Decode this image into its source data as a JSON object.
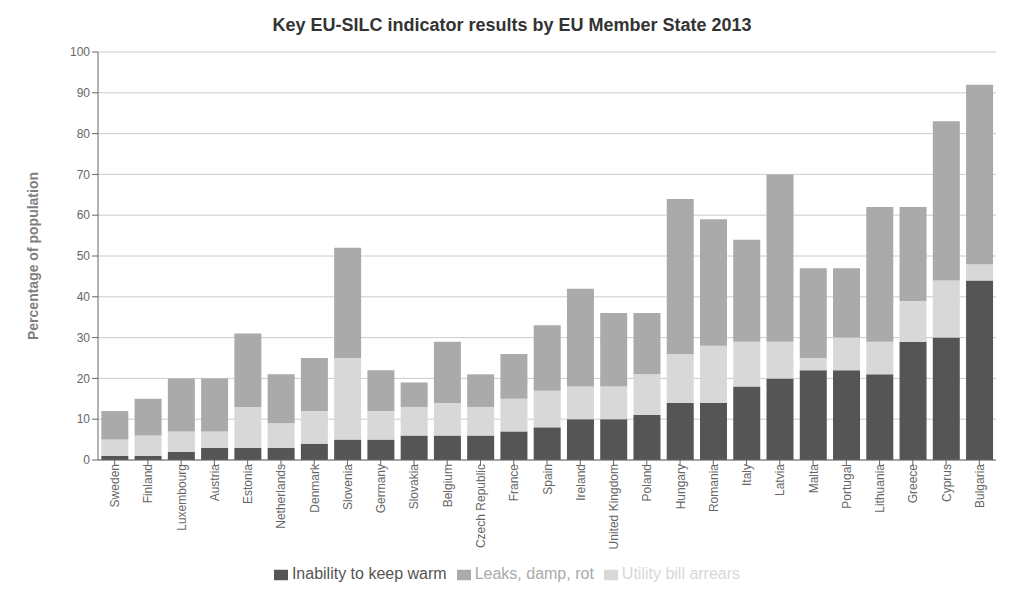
{
  "chart_data": {
    "type": "bar",
    "title": "Key EU-SILC indicator results by EU Member State 2013",
    "ylabel": "Percentage of population",
    "categories": [
      "Sweden",
      "Finland",
      "Luxembourg",
      "Austria",
      "Estonia",
      "Netherlands",
      "Denmark",
      "Slovenia",
      "Germany",
      "Slovakia",
      "Belgium",
      "Czech Republic",
      "France",
      "Spain",
      "Ireland",
      "United Kingdom",
      "Poland",
      "Hungary",
      "Romania",
      "Italy",
      "Latvia",
      "Malta",
      "Portugal",
      "Lithuania",
      "Greece",
      "Cyprus",
      "Bulgaria"
    ],
    "series": [
      {
        "name": "Inability to keep warm",
        "color": "#555555",
        "values": [
          1,
          1,
          2,
          3,
          3,
          3,
          4,
          5,
          5,
          6,
          6,
          6,
          7,
          8,
          10,
          10,
          11,
          14,
          14,
          18,
          20,
          22,
          22,
          21,
          29,
          30,
          44
        ]
      },
      {
        "name": "Utility bill arrears",
        "color": "#d8d8d8",
        "values": [
          4,
          5,
          5,
          4,
          10,
          6,
          8,
          20,
          7,
          7,
          8,
          7,
          8,
          9,
          8,
          8,
          10,
          12,
          14,
          11,
          9,
          3,
          8,
          8,
          10,
          14,
          4
        ]
      },
      {
        "name": "Leaks, damp, rot",
        "color": "#aaaaaa",
        "values": [
          7,
          9,
          13,
          13,
          18,
          12,
          13,
          27,
          10,
          6,
          15,
          8,
          11,
          16,
          24,
          18,
          15,
          38,
          31,
          25,
          41,
          22,
          17,
          33,
          23,
          39,
          44
        ]
      }
    ],
    "ylim": [
      0,
      100
    ],
    "yticks": [
      0,
      10,
      20,
      30,
      40,
      50,
      60,
      70,
      80,
      90,
      100
    ],
    "grid": true,
    "stacked": true,
    "legend": "bottom"
  }
}
